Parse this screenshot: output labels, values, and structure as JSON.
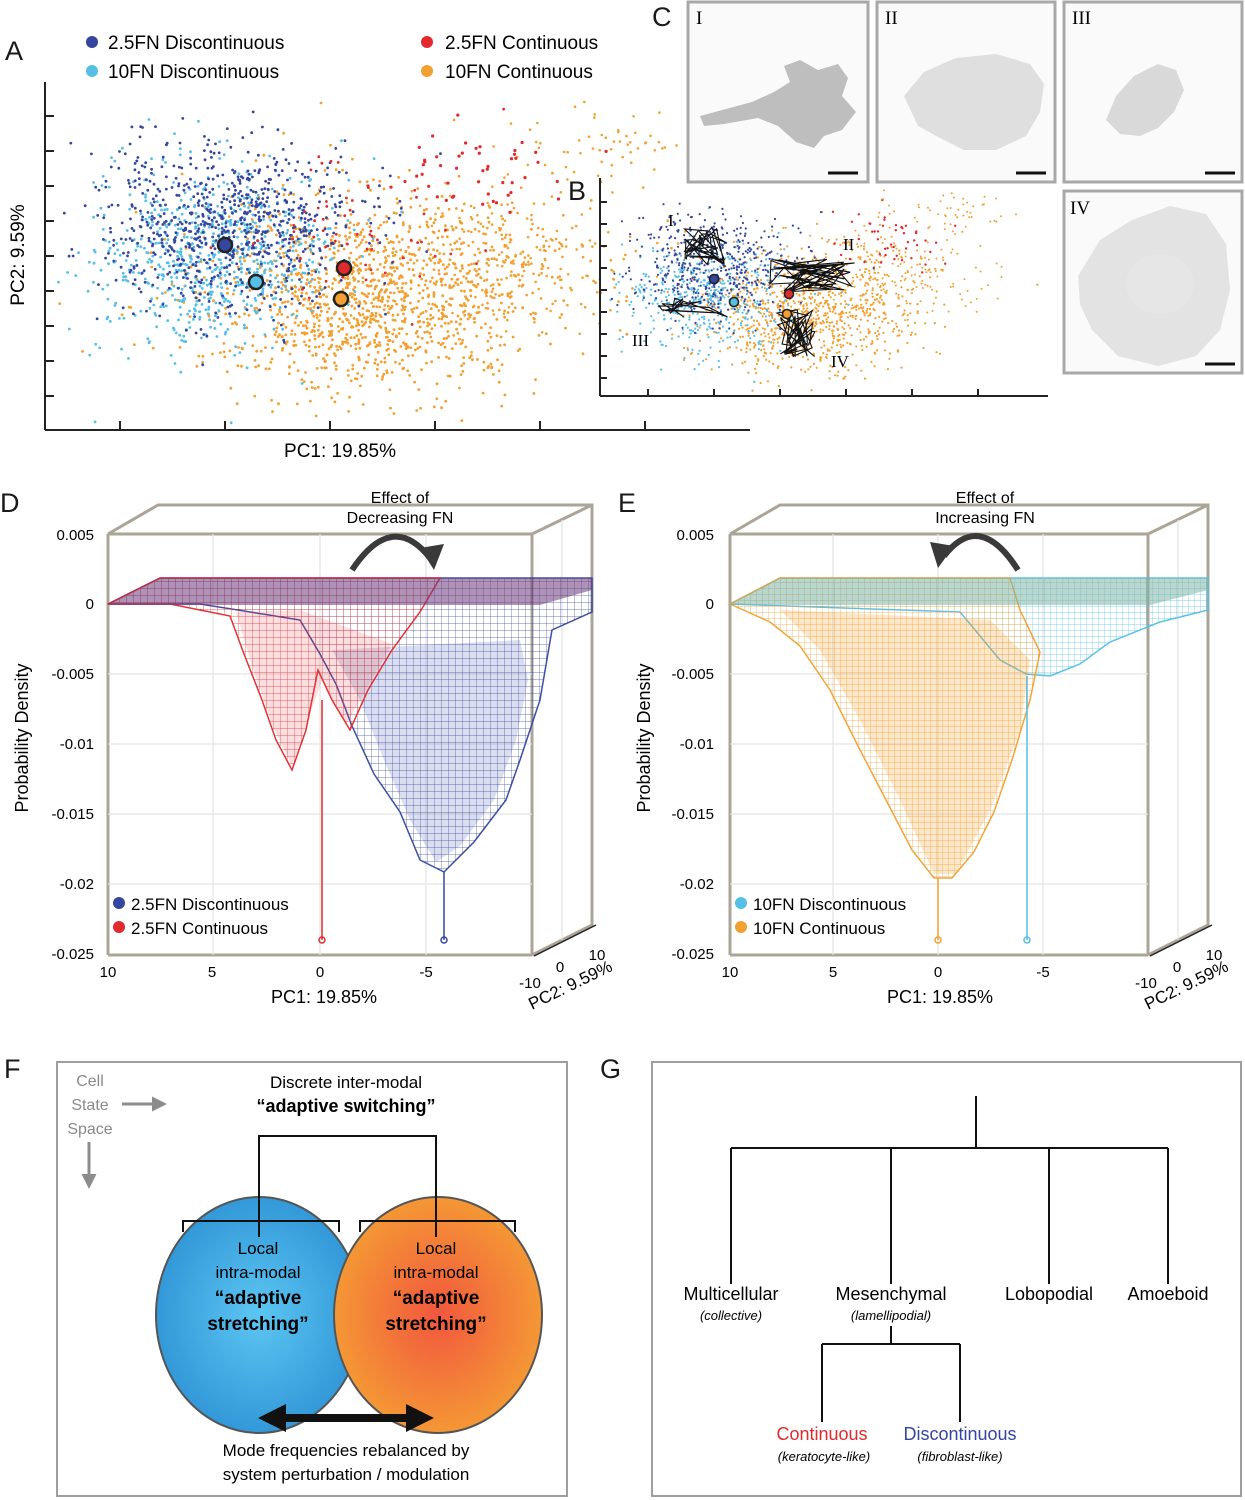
{
  "panels": {
    "A": "A",
    "B": "B",
    "C": "C",
    "D": "D",
    "E": "E",
    "F": "F",
    "G": "G"
  },
  "colors": {
    "disc25": "#34469e",
    "disc10": "#55bfe6",
    "cont25": "#e12a2e",
    "cont10": "#f2a031",
    "traj": "#111111",
    "box": "#aaa597",
    "grid": "#e2e2e2"
  },
  "legendA": [
    {
      "label": "2.5FN Discontinuous",
      "color": "#34469e"
    },
    {
      "label": "10FN Discontinuous",
      "color": "#55bfe6"
    },
    {
      "label": "2.5FN Continuous",
      "color": "#e12a2e"
    },
    {
      "label": "10FN Continuous",
      "color": "#f2a031"
    }
  ],
  "scatterA": {
    "xlabel": "PC1: 19.85%",
    "ylabel": "PC2: 9.59%"
  },
  "panelB": {
    "traj_labels": [
      "I",
      "II",
      "III",
      "IV"
    ]
  },
  "panelC": {
    "labels": [
      "I",
      "II",
      "III",
      "IV"
    ]
  },
  "panelD": {
    "ylabel": "Probability Density",
    "xlabel": "PC1: 19.85%",
    "zlabel": "PC2: 9.59%",
    "annotation_line1": "Effect of",
    "annotation_line2": "Decreasing FN",
    "legend": [
      {
        "label": "2.5FN Discontinuous",
        "color": "#34469e"
      },
      {
        "label": "2.5FN Continuous",
        "color": "#e12a2e"
      }
    ],
    "yticks": [
      "0.005",
      "0",
      "-0.005",
      "-0.01",
      "-0.015",
      "-0.02",
      "-0.025"
    ],
    "xticks": [
      "10",
      "5",
      "0",
      "-5",
      "-10"
    ],
    "zticks": [
      "0",
      "10"
    ]
  },
  "panelE": {
    "ylabel": "Probability Density",
    "xlabel": "PC1: 19.85%",
    "zlabel": "PC2: 9.59%",
    "annotation_line1": "Effect of",
    "annotation_line2": "Increasing FN",
    "legend": [
      {
        "label": "10FN Discontinuous",
        "color": "#55bfe6"
      },
      {
        "label": "10FN Continuous",
        "color": "#f2a031"
      }
    ],
    "yticks": [
      "0.005",
      "0",
      "-0.005",
      "-0.01",
      "-0.015",
      "-0.02",
      "-0.025"
    ],
    "xticks": [
      "10",
      "5",
      "0",
      "-5",
      "-10"
    ],
    "zticks": [
      "0",
      "10"
    ]
  },
  "panelF": {
    "axis1": "Cell",
    "axis2": "State",
    "axis3": "Space",
    "title1": "Discrete inter-modal",
    "title2": "“adaptive switching”",
    "left1": "Local",
    "left2": "intra-modal",
    "left3": "“adaptive",
    "left4": "stretching”",
    "right1": "Local",
    "right2": "intra-modal",
    "right3": "“adaptive",
    "right4": "stretching”",
    "bottom1": "Mode frequencies rebalanced by",
    "bottom2": "system perturbation / modulation"
  },
  "panelG": {
    "multicellular": "Multicellular",
    "collective": "(collective)",
    "mesenchymal": "Mesenchymal",
    "lamellipodial": "(lamellipodial)",
    "lobopodial": "Lobopodial",
    "amoeboid": "Amoeboid",
    "continuous": "Continuous",
    "keratocyte": "(keratocyte-like)",
    "discontinuous": "Discontinuous",
    "fibroblast": "(fibroblast-like)"
  }
}
